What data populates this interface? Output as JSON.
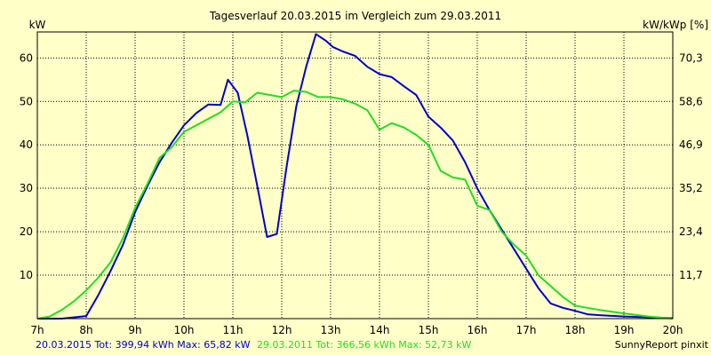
{
  "chart_data": {
    "type": "line",
    "title": "Tagesverlauf 20.03.2015 im Vergleich zum 29.03.2011",
    "ylabel_left": "kW",
    "ylabel_right": "kW/kWp [%]",
    "grid": true,
    "xlim": [
      7,
      20
    ],
    "ylim": [
      0,
      66
    ],
    "x_ticks": [
      {
        "value": 7,
        "label": "7h"
      },
      {
        "value": 8,
        "label": "8h"
      },
      {
        "value": 9,
        "label": "9h"
      },
      {
        "value": 10,
        "label": "10h"
      },
      {
        "value": 11,
        "label": "11h"
      },
      {
        "value": 12,
        "label": "12h"
      },
      {
        "value": 13,
        "label": "13h"
      },
      {
        "value": 14,
        "label": "14h"
      },
      {
        "value": 15,
        "label": "15h"
      },
      {
        "value": 16,
        "label": "16h"
      },
      {
        "value": 17,
        "label": "17h"
      },
      {
        "value": 18,
        "label": "18h"
      },
      {
        "value": 19,
        "label": "19h"
      },
      {
        "value": 20,
        "label": "20h"
      }
    ],
    "y_ticks_left": [
      {
        "value": 10,
        "label": "10"
      },
      {
        "value": 20,
        "label": "20"
      },
      {
        "value": 30,
        "label": "30"
      },
      {
        "value": 40,
        "label": "40"
      },
      {
        "value": 50,
        "label": "50"
      },
      {
        "value": 60,
        "label": "60"
      }
    ],
    "y_ticks_right": [
      {
        "value": 10,
        "label": "11,7"
      },
      {
        "value": 20,
        "label": "23,4"
      },
      {
        "value": 30,
        "label": "35,2"
      },
      {
        "value": 40,
        "label": "46,9"
      },
      {
        "value": 50,
        "label": "58,6"
      },
      {
        "value": 60,
        "label": "70,3"
      }
    ],
    "series": [
      {
        "name": "20.03.2015",
        "color": "#0000cc",
        "x": [
          7,
          7.5,
          8,
          8.25,
          8.5,
          8.75,
          9,
          9.25,
          9.5,
          9.75,
          10,
          10.25,
          10.5,
          10.75,
          10.9,
          11.1,
          11.3,
          11.5,
          11.7,
          11.9,
          12.1,
          12.3,
          12.5,
          12.7,
          12.9,
          13.05,
          13.25,
          13.5,
          13.75,
          14,
          14.25,
          14.5,
          14.75,
          15,
          15.25,
          15.5,
          15.75,
          16,
          16.25,
          16.5,
          16.75,
          17,
          17.25,
          17.5,
          17.75,
          18,
          18.25,
          18.5,
          19,
          19.5,
          20
        ],
        "y": [
          0,
          0,
          0.6,
          5.5,
          11,
          17,
          24.5,
          30.5,
          36,
          40.5,
          44.5,
          47.3,
          49.3,
          49.2,
          55,
          52,
          42,
          30.5,
          18.8,
          19.5,
          35,
          49,
          58,
          65.5,
          64,
          62.5,
          61.5,
          60.5,
          58,
          56.3,
          55.6,
          53.5,
          51.5,
          46.5,
          44,
          41,
          36,
          30,
          25,
          20.5,
          16,
          11.5,
          7,
          3.5,
          2.5,
          1.8,
          1,
          0.8,
          0.5,
          0.3,
          0.1
        ]
      },
      {
        "name": "29.03.2011",
        "color": "#22dd22",
        "x": [
          7,
          7.25,
          7.5,
          7.75,
          8,
          8.25,
          8.5,
          8.75,
          9,
          9.25,
          9.5,
          9.75,
          10,
          10.25,
          10.5,
          10.75,
          11,
          11.25,
          11.5,
          11.75,
          12,
          12.25,
          12.5,
          12.75,
          13,
          13.25,
          13.5,
          13.75,
          14,
          14.25,
          14.5,
          14.75,
          15,
          15.25,
          15.5,
          15.75,
          16,
          16.25,
          16.5,
          16.75,
          17,
          17.25,
          17.5,
          17.75,
          18,
          18.25,
          18.5,
          19,
          19.5,
          20
        ],
        "y": [
          0,
          0.5,
          2,
          4,
          6.5,
          9.5,
          13,
          18.5,
          25.5,
          31,
          37,
          39.5,
          43,
          44.5,
          46,
          47.5,
          50,
          49.8,
          52,
          51.5,
          51,
          52.5,
          52.2,
          51,
          51,
          50.5,
          49.5,
          48,
          43.5,
          45,
          44,
          42.3,
          40,
          34,
          32.5,
          32,
          26,
          25,
          20,
          17,
          14.5,
          10,
          7.5,
          5,
          3,
          2.5,
          2,
          1.2,
          0.5,
          0
        ]
      }
    ],
    "footer": {
      "series1": "20.03.2015 Tot: 399,94 kWh Max: 65,82 kW",
      "series2": "29.03.2011 Tot: 366,56 kWh Max: 52,73 kW",
      "credit": "SunnyReport pinxit"
    }
  }
}
